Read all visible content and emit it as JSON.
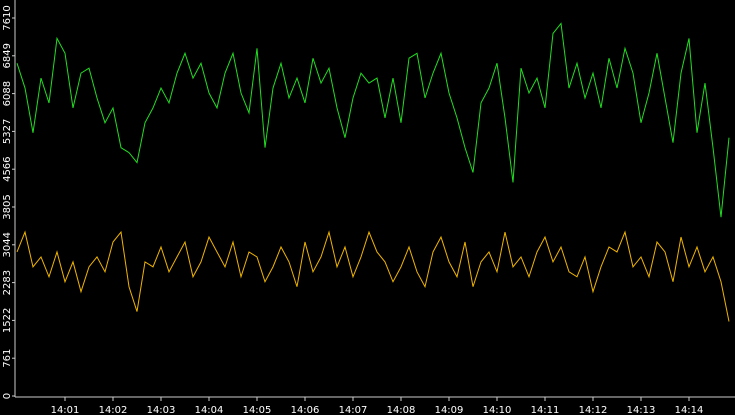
{
  "chart_data": {
    "type": "line",
    "categories": [
      null,
      null,
      null,
      null,
      null,
      null,
      "14:01",
      null,
      null,
      null,
      null,
      null,
      "14:02",
      null,
      null,
      null,
      null,
      null,
      "14:03",
      null,
      null,
      null,
      null,
      null,
      "14:04",
      null,
      null,
      null,
      null,
      null,
      "14:05",
      null,
      null,
      null,
      null,
      null,
      "14:06",
      null,
      null,
      null,
      null,
      null,
      "14:07",
      null,
      null,
      null,
      null,
      null,
      "14:08",
      null,
      null,
      null,
      null,
      null,
      "14:09",
      null,
      null,
      null,
      null,
      null,
      "14:10",
      null,
      null,
      null,
      null,
      null,
      "14:11",
      null,
      null,
      null,
      null,
      null,
      "14:12",
      null,
      null,
      null,
      null,
      null,
      "14:13",
      null,
      null,
      null,
      null,
      null,
      "14:14",
      null,
      null,
      null,
      null,
      null
    ],
    "series": [
      {
        "color": "#22dd22",
        "values": [
          6700,
          6200,
          5300,
          6400,
          5900,
          7200,
          6900,
          5800,
          6500,
          6600,
          6000,
          5500,
          5800,
          5000,
          4900,
          4700,
          5500,
          5800,
          6200,
          5900,
          6500,
          6900,
          6400,
          6700,
          6100,
          5800,
          6500,
          6900,
          6100,
          5700,
          7000,
          5000,
          6200,
          6700,
          6000,
          6400,
          5900,
          6800,
          6300,
          6600,
          5800,
          5200,
          6000,
          6500,
          6300,
          6400,
          5600,
          6400,
          5500,
          6800,
          6900,
          6000,
          6500,
          6900,
          6100,
          5600,
          5000,
          4500,
          5900,
          6200,
          6700,
          5600,
          4300,
          6600,
          6100,
          6400,
          5800,
          7300,
          7500,
          6200,
          6700,
          6000,
          6500,
          5800,
          6800,
          6200,
          7000,
          6500,
          5500,
          6100,
          6900,
          6000,
          5100,
          6500,
          7200,
          5300,
          6300,
          5000,
          3600,
          5200
        ]
      },
      {
        "color": "#f0b400",
        "values": [
          2900,
          3300,
          2600,
          2800,
          2400,
          2900,
          2300,
          2700,
          2100,
          2600,
          2800,
          2500,
          3100,
          3300,
          2200,
          1700,
          2700,
          2600,
          3000,
          2500,
          2800,
          3100,
          2400,
          2700,
          3200,
          2900,
          2600,
          3100,
          2400,
          2900,
          2800,
          2300,
          2600,
          3000,
          2700,
          2200,
          3100,
          2500,
          2800,
          3300,
          2600,
          3000,
          2400,
          2800,
          3300,
          2900,
          2700,
          2300,
          2600,
          3000,
          2500,
          2200,
          2900,
          3200,
          2700,
          2400,
          3100,
          2200,
          2700,
          2900,
          2500,
          3300,
          2600,
          2800,
          2400,
          2900,
          3200,
          2700,
          3000,
          2500,
          2400,
          2800,
          2100,
          2600,
          3000,
          2900,
          3300,
          2600,
          2800,
          2400,
          3100,
          2900,
          2300,
          3200,
          2600,
          3000,
          2500,
          2800,
          2300,
          1500
        ]
      }
    ],
    "ylim": [
      0,
      7610
    ],
    "yticks": [
      0,
      761,
      1522,
      2283,
      3044,
      3805,
      4566,
      5327,
      6088,
      6849,
      7610
    ]
  }
}
